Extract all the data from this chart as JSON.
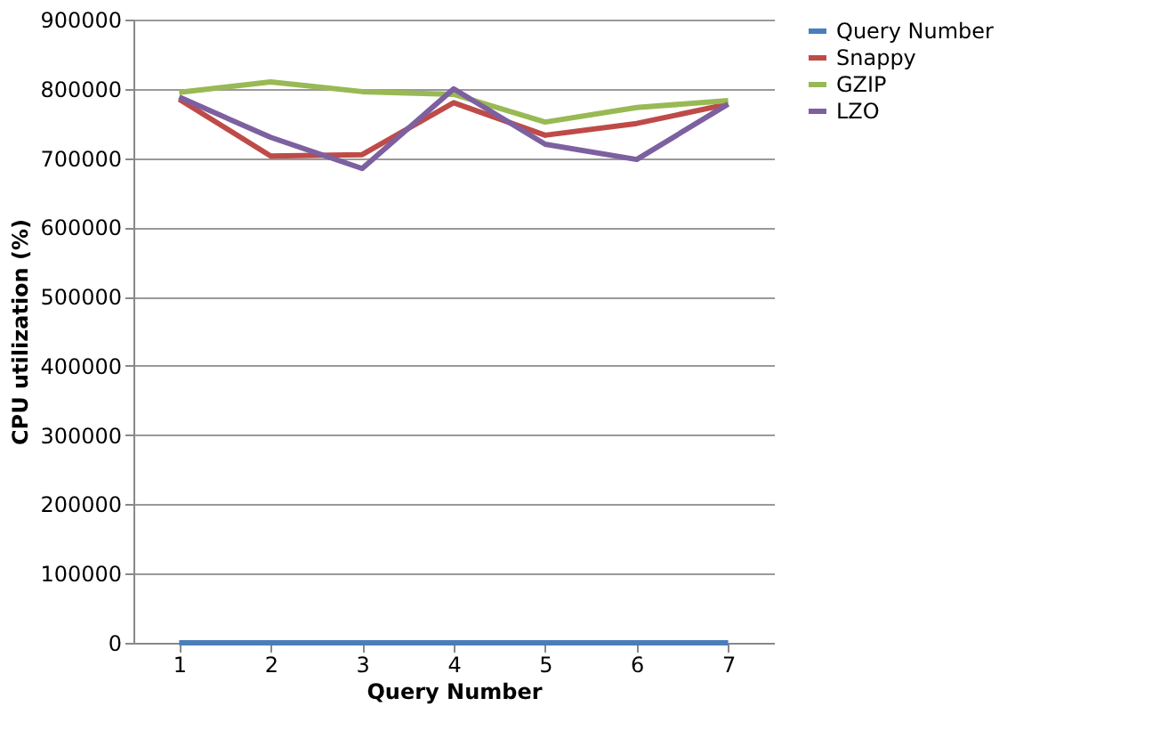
{
  "chart_data": {
    "type": "line",
    "xlabel": "Query Number",
    "ylabel": "CPU utilization  (%)",
    "categories": [
      "1",
      "2",
      "3",
      "4",
      "5",
      "6",
      "7"
    ],
    "series": [
      {
        "name": "Query Number",
        "color": "#4a7ebb",
        "values": [
          0,
          0,
          0,
          0,
          0,
          0,
          0
        ]
      },
      {
        "name": "Snappy",
        "color": "#be4b48",
        "values": [
          785000,
          703000,
          705000,
          780000,
          733000,
          750000,
          778000
        ]
      },
      {
        "name": "GZIP",
        "color": "#98b954",
        "values": [
          795000,
          810000,
          796000,
          792000,
          752000,
          773000,
          783000
        ]
      },
      {
        "name": "LZO",
        "color": "#7d60a0",
        "values": [
          788000,
          730000,
          685000,
          800000,
          720000,
          698000,
          778000
        ]
      }
    ],
    "ylim": [
      0,
      900000
    ],
    "yticks": [
      0,
      100000,
      200000,
      300000,
      400000,
      500000,
      600000,
      700000,
      800000,
      900000
    ],
    "grid": "y",
    "legend": "right",
    "marker": "none",
    "line_style": "solid"
  }
}
